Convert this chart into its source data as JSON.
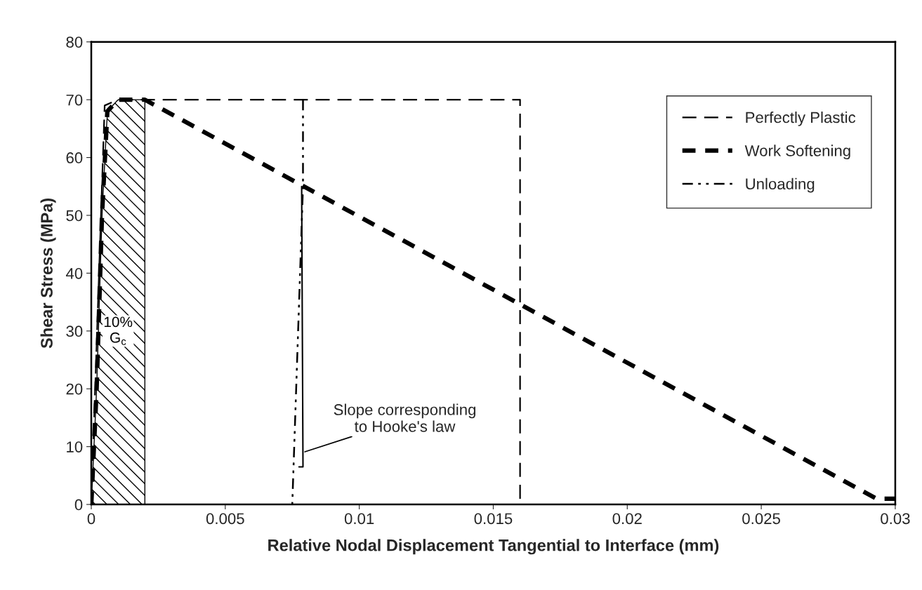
{
  "chart_data": {
    "type": "line",
    "xlabel": "Relative Nodal Displacement Tangential to Interface (mm)",
    "ylabel": "Shear Stress (MPa)",
    "xlim": [
      0,
      0.03
    ],
    "xticks": [
      0,
      0.005,
      0.01,
      0.015,
      0.02,
      0.025,
      0.03
    ],
    "ylim": [
      0,
      80
    ],
    "yticks": [
      0,
      10,
      20,
      30,
      40,
      50,
      60,
      70,
      80
    ],
    "grid": false,
    "legend": "top right",
    "series": [
      {
        "name": "Perfectly Plastic",
        "color": "#000000",
        "line_style": "dashed",
        "x": [
          0,
          0.0005,
          0.001,
          0.016,
          0.016
        ],
        "values": [
          0,
          69,
          70,
          70,
          0
        ]
      },
      {
        "name": "Work Softening",
        "color": "#000000",
        "line_style": "dotted",
        "x": [
          0,
          0.0002,
          0.0004,
          0.0006,
          0.001,
          0.002,
          0.0293,
          0.03
        ],
        "values": [
          0,
          20,
          50,
          68,
          70,
          70,
          1,
          1
        ]
      },
      {
        "name": "Unloading",
        "color": "#000000",
        "line_style": "dashdot",
        "x": [
          0.0079,
          0.0079,
          0.0075
        ],
        "values": [
          70,
          55,
          0
        ]
      },
      {
        "color": "#000000",
        "line_style": "solid",
        "x": [
          0.00785,
          0.0079,
          0.00775
        ],
        "values": [
          55,
          6.5,
          6.5
        ]
      }
    ],
    "bands": [
      {
        "axis": "x",
        "from": 0,
        "to": 0.002,
        "label": "10%\nG$_{c}$",
        "color": "#000000"
      }
    ],
    "annotations": [
      {
        "text": "Slope corresponding\nto Hooke's law",
        "x": 0.0079,
        "y": 9
      }
    ]
  }
}
